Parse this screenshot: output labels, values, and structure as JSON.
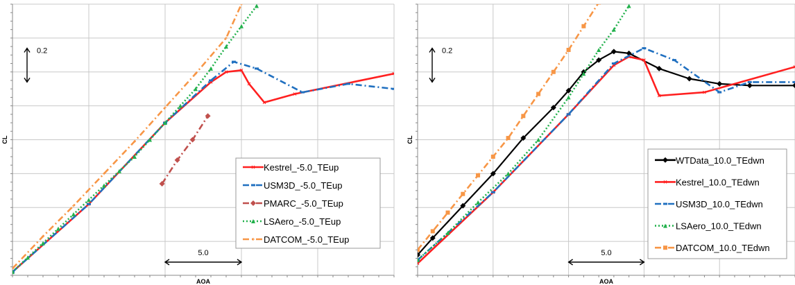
{
  "chart_data": [
    {
      "type": "line",
      "title": "",
      "xlabel": "AOA",
      "ylabel": "CL",
      "xlim": [
        -10,
        15
      ],
      "ylim": [
        -0.35,
        1.25
      ],
      "grid": true,
      "legend_position": "bottom-right",
      "annotations": [
        {
          "text": "0.2",
          "kind": "vertical-scale-arrow",
          "value": 0.2
        },
        {
          "text": "5.0",
          "kind": "horizontal-scale-arrow",
          "value": 5.0
        }
      ],
      "series": [
        {
          "name": "Kestrel_-5.0_TEup",
          "color": "#ff2020",
          "style": "solid",
          "marker": "x",
          "x": [
            -10,
            -5,
            0,
            3,
            4,
            5,
            5.5,
            6.5,
            8.5,
            15
          ],
          "y": [
            -0.33,
            0.07,
            0.55,
            0.79,
            0.85,
            0.86,
            0.78,
            0.67,
            0.72,
            0.84
          ]
        },
        {
          "name": "USM3D_-5.0_TEup",
          "color": "#2070c0",
          "style": "dashdot",
          "marker": "dash",
          "x": [
            -10,
            -5,
            0,
            3,
            4.5,
            6,
            9,
            12,
            15
          ],
          "y": [
            -0.33,
            0.07,
            0.55,
            0.8,
            0.91,
            0.87,
            0.73,
            0.78,
            0.75
          ],
          "x2": [],
          "y2": []
        },
        {
          "name": "PMARC_-5.0_TEup",
          "color": "#c0504d",
          "style": "dashdot",
          "marker": "diamond",
          "x": [
            -0.2,
            0.8,
            1.8,
            2.8
          ],
          "y": [
            0.19,
            0.33,
            0.45,
            0.59
          ]
        },
        {
          "name": "LSAero_-5.0_TEup",
          "color": "#22b14c",
          "style": "dotted",
          "marker": "triangle",
          "x": [
            -10,
            -9,
            -8,
            -7,
            -6,
            -5,
            -4,
            -3,
            -2,
            -1,
            0,
            1,
            2,
            3,
            4,
            5,
            6
          ],
          "y": [
            -0.33,
            -0.245,
            -0.16,
            -0.075,
            0.01,
            0.095,
            0.18,
            0.265,
            0.35,
            0.45,
            0.55,
            0.65,
            0.75,
            0.87,
            1.0,
            1.12,
            1.24
          ]
        },
        {
          "name": "DATCOM_-5.0_TEup",
          "color": "#f79646",
          "style": "dashdot",
          "marker": "plus",
          "x": [
            -10,
            -8,
            -6,
            -4,
            -2,
            0,
            2,
            4,
            5
          ],
          "y": [
            -0.31,
            -0.12,
            0.06,
            0.25,
            0.44,
            0.64,
            0.84,
            1.05,
            1.25
          ]
        }
      ]
    },
    {
      "type": "line",
      "title": "",
      "xlabel": "AOA",
      "ylabel": "CL",
      "xlim": [
        -10,
        15
      ],
      "ylim": [
        -0.35,
        1.25
      ],
      "grid": true,
      "legend_position": "bottom-right",
      "annotations": [
        {
          "text": "0.2",
          "kind": "vertical-scale-arrow",
          "value": 0.2
        },
        {
          "text": "5.0",
          "kind": "horizontal-scale-arrow",
          "value": 5.0
        }
      ],
      "series": [
        {
          "name": "WTData_10.0_TEdwn",
          "color": "#000000",
          "style": "solid",
          "marker": "diamond",
          "x": [
            -10,
            -9,
            -7,
            -5,
            -3,
            -1,
            0,
            1,
            2,
            3,
            4,
            6,
            8,
            10,
            12,
            15
          ],
          "y": [
            -0.23,
            -0.13,
            0.06,
            0.25,
            0.46,
            0.64,
            0.74,
            0.85,
            0.92,
            0.97,
            0.96,
            0.87,
            0.81,
            0.78,
            0.77,
            0.77
          ]
        },
        {
          "name": "Kestrel_10.0_TEdwn",
          "color": "#ff2020",
          "style": "solid",
          "marker": "x",
          "x": [
            -10,
            -5,
            0,
            3,
            4,
            5,
            6,
            9,
            15
          ],
          "y": [
            -0.28,
            0.14,
            0.6,
            0.89,
            0.94,
            0.92,
            0.71,
            0.73,
            0.88
          ]
        },
        {
          "name": "USM3D_10.0_TEdwn",
          "color": "#2070c0",
          "style": "dashdot",
          "marker": "dash",
          "x": [
            -10,
            -5,
            0,
            3,
            5,
            7,
            10,
            12,
            15
          ],
          "y": [
            -0.26,
            0.14,
            0.6,
            0.9,
            0.99,
            0.92,
            0.73,
            0.79,
            0.79
          ]
        },
        {
          "name": "LSAero_10.0_TEdwn",
          "color": "#22b14c",
          "style": "dotted",
          "marker": "triangle",
          "x": [
            -10,
            -8,
            -6,
            -4,
            -2,
            0,
            1,
            2,
            3,
            4
          ],
          "y": [
            -0.26,
            -0.1,
            0.08,
            0.25,
            0.45,
            0.7,
            0.84,
            0.98,
            1.1,
            1.24
          ]
        },
        {
          "name": "DATCOM_10.0_TEdwn",
          "color": "#f79646",
          "style": "dashdot",
          "marker": "square",
          "x": [
            -10,
            -9,
            -8,
            -7,
            -6,
            -5,
            -4,
            -3,
            -2,
            -1,
            0,
            1,
            2
          ],
          "y": [
            -0.2,
            -0.09,
            0.02,
            0.13,
            0.24,
            0.35,
            0.46,
            0.59,
            0.72,
            0.85,
            0.98,
            1.12,
            1.26
          ]
        }
      ]
    }
  ]
}
